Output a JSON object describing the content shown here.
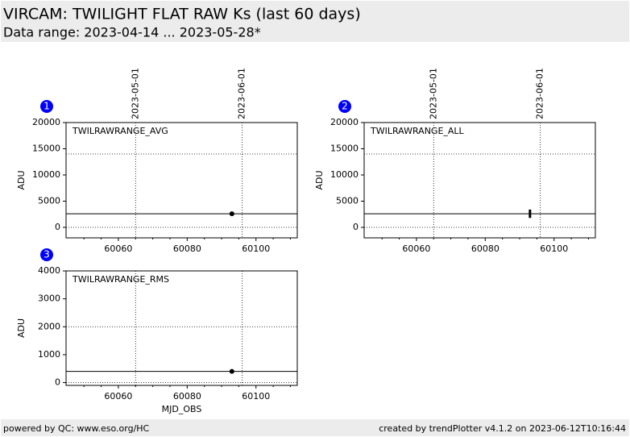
{
  "header": {
    "title": "VIRCAM: TWILIGHT FLAT RAW Ks (last 60 days)",
    "subtitle": "Data range: 2023-04-14 ... 2023-05-28*"
  },
  "chart_data": [
    {
      "type": "scatter",
      "badge": "1",
      "label": "TWILRAWRANGE_AVG",
      "ylabel": "ADU",
      "x": [
        60093
      ],
      "values": [
        2600
      ],
      "color": "#000000",
      "reference": 2600,
      "limits": [
        0,
        14000
      ],
      "xlim": [
        60044.8,
        60112
      ],
      "xticks": [
        60060,
        60080,
        60100
      ],
      "xminorticks": [
        60050,
        60055,
        60065,
        60070,
        60075,
        60085,
        60090,
        60095,
        60105,
        60110
      ],
      "top_ticks": [
        {
          "value": 60065,
          "label": "2023-05-01"
        },
        {
          "value": 60096,
          "label": "2023-06-01"
        }
      ],
      "ylim": [
        -2000,
        20000
      ],
      "yticks": [
        0,
        5000,
        10000,
        15000,
        20000
      ]
    },
    {
      "type": "errorbar",
      "badge": "2",
      "label": "TWILRAWRANGE_ALL",
      "ylabel": "ADU",
      "x": [
        60093
      ],
      "values": [
        2600
      ],
      "errors": [
        800
      ],
      "color": "#000000",
      "reference": 2600,
      "limits": [
        0,
        14000
      ],
      "xlim": [
        60044.8,
        60112
      ],
      "xticks": [
        60060,
        60080,
        60100
      ],
      "xminorticks": [
        60050,
        60055,
        60065,
        60070,
        60075,
        60085,
        60090,
        60095,
        60105,
        60110
      ],
      "top_ticks": [
        {
          "value": 60065,
          "label": "2023-05-01"
        },
        {
          "value": 60096,
          "label": "2023-06-01"
        }
      ],
      "ylim": [
        -2000,
        20000
      ],
      "yticks": [
        0,
        5000,
        10000,
        15000,
        20000
      ]
    },
    {
      "type": "scatter",
      "badge": "3",
      "label": "TWILRAWRANGE_RMS",
      "ylabel": "ADU",
      "xlabel": "MJD_OBS",
      "x": [
        60093
      ],
      "values": [
        400
      ],
      "color": "#000000",
      "reference": 400,
      "limits": [
        0,
        2000
      ],
      "xlim": [
        60044.8,
        60112
      ],
      "xticks": [
        60060,
        60080,
        60100
      ],
      "xminorticks": [
        60050,
        60055,
        60065,
        60070,
        60075,
        60085,
        60090,
        60095,
        60105,
        60110
      ],
      "top_ticks": [
        {
          "value": 60065
        },
        {
          "value": 60096
        }
      ],
      "ylim": [
        -100,
        4000
      ],
      "yticks": [
        0,
        1000,
        2000,
        3000,
        4000
      ]
    }
  ],
  "footer": {
    "left": "powered by QC: www.eso.org/HC",
    "right": "created by trendPlotter v4.1.2 on 2023-06-12T10:16:44"
  }
}
